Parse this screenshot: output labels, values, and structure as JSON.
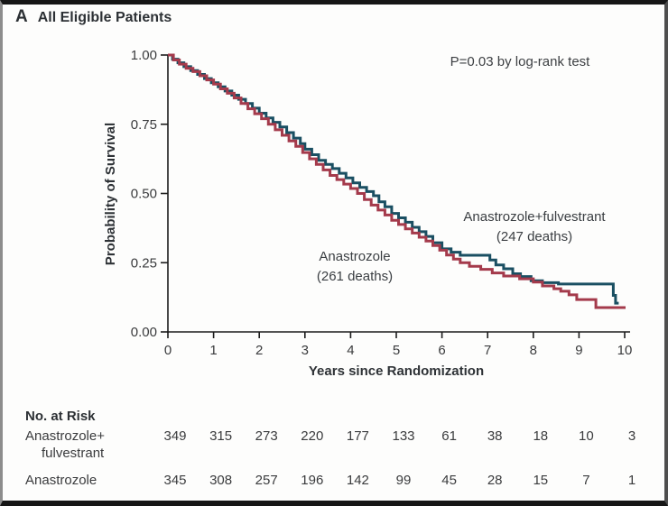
{
  "panel": {
    "letter": "A",
    "title": "All Eligible Patients"
  },
  "annotation": {
    "pvalue": "P=0.03 by log-rank test"
  },
  "chart_data": {
    "type": "line",
    "subtype": "kaplan-meier-step",
    "title": "A All Eligible Patients",
    "xlabel": "Years since Randomization",
    "ylabel": "Probability of Survival",
    "xlim": [
      0,
      10
    ],
    "ylim": [
      0,
      1
    ],
    "x_ticks": [
      0,
      1,
      2,
      3,
      4,
      5,
      6,
      7,
      8,
      9,
      10
    ],
    "y_ticks": [
      "1.00",
      "0.75",
      "0.50",
      "0.25",
      "0.00"
    ],
    "grid": false,
    "legend_position": "inline-annotations",
    "annotation": "P=0.03 by log-rank test",
    "series": [
      {
        "name": "Anastrozole+fulvestrant",
        "deaths": 247,
        "label_line1": "Anastrozole+fulvestrant",
        "label_line2": "(247 deaths)",
        "color": "#1A4F62",
        "points": [
          [
            0,
            1.0
          ],
          [
            0.1,
            0.985
          ],
          [
            0.22,
            0.972
          ],
          [
            0.35,
            0.958
          ],
          [
            0.5,
            0.944
          ],
          [
            0.65,
            0.93
          ],
          [
            0.8,
            0.915
          ],
          [
            0.95,
            0.9
          ],
          [
            1.1,
            0.885
          ],
          [
            1.25,
            0.87
          ],
          [
            1.4,
            0.855
          ],
          [
            1.55,
            0.84
          ],
          [
            1.7,
            0.825
          ],
          [
            1.85,
            0.808
          ],
          [
            2.0,
            0.79
          ],
          [
            2.15,
            0.773
          ],
          [
            2.3,
            0.757
          ],
          [
            2.45,
            0.74
          ],
          [
            2.6,
            0.72
          ],
          [
            2.75,
            0.7
          ],
          [
            2.9,
            0.68
          ],
          [
            3.0,
            0.66
          ],
          [
            3.15,
            0.64
          ],
          [
            3.3,
            0.62
          ],
          [
            3.45,
            0.605
          ],
          [
            3.6,
            0.59
          ],
          [
            3.75,
            0.573
          ],
          [
            3.9,
            0.556
          ],
          [
            4.05,
            0.538
          ],
          [
            4.2,
            0.522
          ],
          [
            4.35,
            0.507
          ],
          [
            4.5,
            0.492
          ],
          [
            4.62,
            0.47
          ],
          [
            4.75,
            0.452
          ],
          [
            4.9,
            0.428
          ],
          [
            5.05,
            0.412
          ],
          [
            5.2,
            0.396
          ],
          [
            5.35,
            0.378
          ],
          [
            5.5,
            0.362
          ],
          [
            5.65,
            0.345
          ],
          [
            5.8,
            0.322
          ],
          [
            6.0,
            0.3
          ],
          [
            6.2,
            0.288
          ],
          [
            6.4,
            0.277
          ],
          [
            7.05,
            0.26
          ],
          [
            7.18,
            0.242
          ],
          [
            7.35,
            0.228
          ],
          [
            7.55,
            0.21
          ],
          [
            7.72,
            0.2
          ],
          [
            7.95,
            0.185
          ],
          [
            8.2,
            0.178
          ],
          [
            8.55,
            0.173
          ],
          [
            9.75,
            0.132
          ],
          [
            9.8,
            0.104
          ],
          [
            9.87,
            0.104
          ]
        ]
      },
      {
        "name": "Anastrozole",
        "deaths": 261,
        "label_line1": "Anastrozole",
        "label_line2": "(261 deaths)",
        "color": "#A43A4B",
        "points": [
          [
            0,
            1.0
          ],
          [
            0.12,
            0.982
          ],
          [
            0.25,
            0.967
          ],
          [
            0.4,
            0.952
          ],
          [
            0.55,
            0.94
          ],
          [
            0.7,
            0.925
          ],
          [
            0.85,
            0.91
          ],
          [
            1.0,
            0.895
          ],
          [
            1.15,
            0.878
          ],
          [
            1.3,
            0.862
          ],
          [
            1.45,
            0.845
          ],
          [
            1.6,
            0.825
          ],
          [
            1.75,
            0.806
          ],
          [
            1.9,
            0.788
          ],
          [
            2.05,
            0.77
          ],
          [
            2.2,
            0.75
          ],
          [
            2.35,
            0.73
          ],
          [
            2.5,
            0.71
          ],
          [
            2.65,
            0.69
          ],
          [
            2.8,
            0.67
          ],
          [
            2.95,
            0.648
          ],
          [
            3.1,
            0.625
          ],
          [
            3.25,
            0.605
          ],
          [
            3.4,
            0.585
          ],
          [
            3.55,
            0.565
          ],
          [
            3.7,
            0.55
          ],
          [
            3.85,
            0.534
          ],
          [
            4.0,
            0.518
          ],
          [
            4.15,
            0.5
          ],
          [
            4.3,
            0.478
          ],
          [
            4.45,
            0.458
          ],
          [
            4.6,
            0.44
          ],
          [
            4.75,
            0.422
          ],
          [
            4.9,
            0.403
          ],
          [
            5.05,
            0.388
          ],
          [
            5.2,
            0.372
          ],
          [
            5.35,
            0.357
          ],
          [
            5.5,
            0.342
          ],
          [
            5.65,
            0.328
          ],
          [
            5.8,
            0.312
          ],
          [
            5.95,
            0.295
          ],
          [
            6.1,
            0.278
          ],
          [
            6.25,
            0.263
          ],
          [
            6.4,
            0.25
          ],
          [
            6.6,
            0.237
          ],
          [
            6.85,
            0.226
          ],
          [
            7.1,
            0.213
          ],
          [
            7.35,
            0.202
          ],
          [
            7.7,
            0.192
          ],
          [
            8.0,
            0.18
          ],
          [
            8.2,
            0.166
          ],
          [
            8.45,
            0.156
          ],
          [
            8.6,
            0.147
          ],
          [
            8.78,
            0.134
          ],
          [
            8.95,
            0.117
          ],
          [
            9.37,
            0.088
          ],
          [
            10.02,
            0.088
          ]
        ]
      }
    ]
  },
  "risk_table": {
    "header": "No. at Risk",
    "rows": [
      {
        "label_line1": "Anastrozole+",
        "label_line2": "fulvestrant",
        "counts": [
          349,
          315,
          273,
          220,
          177,
          133,
          61,
          38,
          18,
          10,
          3
        ]
      },
      {
        "label_line1": "Anastrozole",
        "label_line2": "",
        "counts": [
          345,
          308,
          257,
          196,
          142,
          99,
          45,
          28,
          15,
          7,
          1
        ]
      }
    ]
  }
}
